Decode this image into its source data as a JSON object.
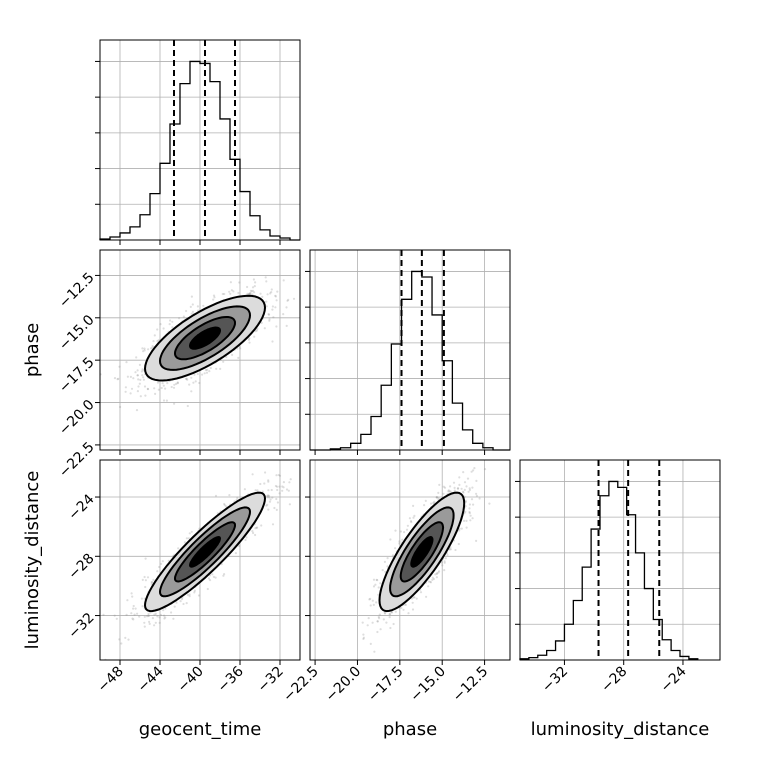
{
  "chart_data": {
    "type": "corner",
    "parameters": [
      "geocent_time",
      "phase",
      "luminosity_distance"
    ],
    "axis_labels": {
      "geocent_time": "geocent_time",
      "phase": "phase",
      "luminosity_distance": "luminosity_distance"
    },
    "ranges": {
      "geocent_time": [
        -50.0,
        -30.0
      ],
      "phase": [
        -22.8,
        -11.0
      ],
      "luminosity_distance": [
        -35.0,
        -21.5
      ]
    },
    "ticks": {
      "geocent_time": [
        -48,
        -44,
        -40,
        -36,
        -32
      ],
      "phase": [
        -22.5,
        -20.0,
        -17.5,
        -15.0,
        -12.5
      ],
      "luminosity_distance": [
        -32,
        -28,
        -24
      ]
    },
    "tick_labels": {
      "geocent_time": [
        "−48",
        "−44",
        "−40",
        "−36",
        "−32"
      ],
      "phase": [
        "−22.5",
        "−20.0",
        "−17.5",
        "−15.0",
        "−12.5"
      ],
      "luminosity_distance": [
        "−32",
        "−28",
        "−24"
      ]
    },
    "quantiles": {
      "geocent_time": [
        -42.6,
        -39.5,
        -36.5
      ],
      "phase": [
        -17.4,
        -16.2,
        -14.9
      ],
      "luminosity_distance": [
        -29.7,
        -27.7,
        -25.6
      ]
    },
    "histograms": {
      "geocent_time": {
        "edges": [
          -50,
          -49,
          -48,
          -47,
          -46,
          -45,
          -44,
          -43,
          -42,
          -41,
          -40,
          -39,
          -38,
          -37,
          -36,
          -35,
          -34,
          -33,
          -32,
          -31,
          -30
        ],
        "counts": [
          1,
          3,
          7,
          13,
          25,
          46,
          76,
          115,
          155,
          177,
          175,
          157,
          120,
          80,
          48,
          24,
          10,
          4,
          2,
          0
        ]
      },
      "phase": {
        "edges": [
          -22.8,
          -22.2,
          -21.6,
          -21.0,
          -20.4,
          -19.8,
          -19.2,
          -18.6,
          -18.0,
          -17.4,
          -16.8,
          -16.2,
          -15.6,
          -15.0,
          -14.4,
          -13.8,
          -13.2,
          -12.6,
          -12.0,
          -11.4,
          -10.8
        ],
        "counts": [
          0,
          0,
          1,
          2,
          6,
          14,
          30,
          58,
          95,
          135,
          160,
          155,
          121,
          80,
          42,
          18,
          6,
          2,
          0,
          0
        ]
      },
      "luminosity_distance": {
        "edges": [
          -35.0,
          -34.4,
          -33.8,
          -33.2,
          -32.6,
          -32.0,
          -31.4,
          -30.8,
          -30.2,
          -29.6,
          -29.0,
          -28.4,
          -27.8,
          -27.2,
          -26.6,
          -26.0,
          -25.4,
          -24.8,
          -24.2,
          -23.6,
          -23.0
        ],
        "counts": [
          1,
          2,
          4,
          8,
          16,
          30,
          50,
          78,
          110,
          138,
          150,
          145,
          122,
          90,
          60,
          34,
          17,
          8,
          3,
          1
        ]
      }
    },
    "correlations": {
      "phase|geocent_time": 0.72,
      "luminosity_distance|geocent_time": 0.9,
      "luminosity_distance|phase": 0.82
    },
    "means": {
      "geocent_time": -39.5,
      "phase": -16.2,
      "luminosity_distance": -27.7
    },
    "stddevs": {
      "geocent_time": 3.0,
      "phase": 1.25,
      "luminosity_distance": 2.0
    },
    "contour_levels_sigma": [
      0.5,
      1.0,
      1.5,
      2.0
    ],
    "contour_fill_colors": [
      "#000000",
      "#555555",
      "#9a9a9a",
      "#dcdcdc"
    ],
    "grid": true
  }
}
